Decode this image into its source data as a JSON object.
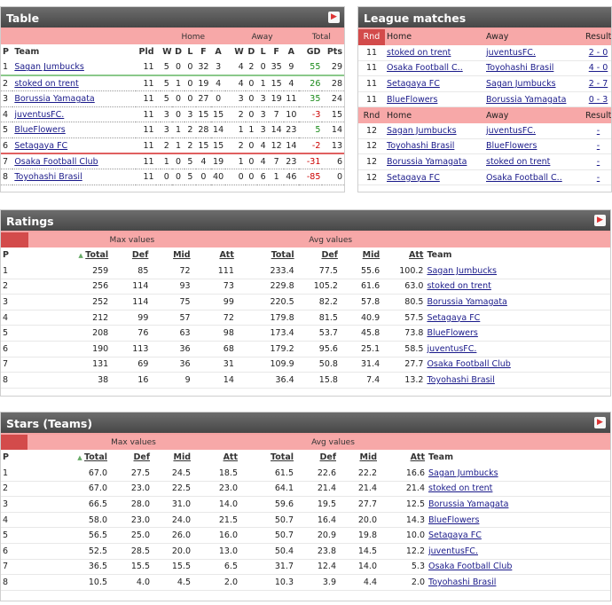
{
  "table": {
    "title": "Table",
    "groups": {
      "home": "Home",
      "away": "Away",
      "total": "Total"
    },
    "headers": {
      "p": "P",
      "team": "Team",
      "pld": "Pld",
      "w": "W",
      "d": "D",
      "l": "L",
      "f": "F",
      "a": "A",
      "w2": "W",
      "d2": "D",
      "l2": "L",
      "f2": "F",
      "a2": "A",
      "gd": "GD",
      "pts": "Pts"
    },
    "rows": [
      [
        "1",
        "Sagan Jumbucks",
        "11",
        "5",
        "0",
        "0",
        "32",
        "3",
        "4",
        "2",
        "0",
        "35",
        "9",
        "55",
        "29"
      ],
      [
        "2",
        "stoked on trent",
        "11",
        "5",
        "1",
        "0",
        "19",
        "4",
        "4",
        "0",
        "1",
        "15",
        "4",
        "26",
        "28"
      ],
      [
        "3",
        "Borussia Yamagata",
        "11",
        "5",
        "0",
        "0",
        "27",
        "0",
        "3",
        "0",
        "3",
        "19",
        "11",
        "35",
        "24"
      ],
      [
        "4",
        "juventusFC.",
        "11",
        "3",
        "0",
        "3",
        "15",
        "15",
        "2",
        "0",
        "3",
        "7",
        "10",
        "-3",
        "15"
      ],
      [
        "5",
        "BlueFlowers",
        "11",
        "3",
        "1",
        "2",
        "28",
        "14",
        "1",
        "1",
        "3",
        "14",
        "23",
        "5",
        "14"
      ],
      [
        "6",
        "Setagaya FC",
        "11",
        "2",
        "1",
        "2",
        "15",
        "15",
        "2",
        "0",
        "4",
        "12",
        "14",
        "-2",
        "13"
      ],
      [
        "7",
        "Osaka Football Club",
        "11",
        "1",
        "0",
        "5",
        "4",
        "19",
        "1",
        "0",
        "4",
        "7",
        "23",
        "-31",
        "6"
      ],
      [
        "8",
        "Toyohashi Brasil",
        "11",
        "0",
        "0",
        "5",
        "0",
        "40",
        "0",
        "0",
        "6",
        "1",
        "46",
        "-85",
        "0"
      ]
    ]
  },
  "league": {
    "title": "League matches",
    "h1": {
      "rnd": "Rnd",
      "home": "Home",
      "away": "Away",
      "result": "Result"
    },
    "rows1": [
      [
        "11",
        "stoked on trent",
        "juventusFC.",
        "2 - 0"
      ],
      [
        "11",
        "Osaka Football C..",
        "Toyohashi Brasil",
        "4 - 0"
      ],
      [
        "11",
        "Setagaya FC",
        "Sagan Jumbucks",
        "2 - 7"
      ],
      [
        "11",
        "BlueFlowers",
        "Borussia Yamagata",
        "0 - 3"
      ]
    ],
    "h2": {
      "rnd": "Rnd",
      "home": "Home",
      "away": "Away",
      "result": "Result"
    },
    "rows2": [
      [
        "12",
        "Sagan Jumbucks",
        "juventusFC.",
        "-"
      ],
      [
        "12",
        "Toyohashi Brasil",
        "BlueFlowers",
        "-"
      ],
      [
        "12",
        "Borussia Yamagata",
        "stoked on trent",
        "-"
      ],
      [
        "12",
        "Setagaya FC",
        "Osaka Football C..",
        "-"
      ]
    ]
  },
  "ratings": {
    "title": "Ratings",
    "g1": "Max values",
    "g2": "Avg values",
    "headers": {
      "p": "P",
      "total": "Total",
      "def": "Def",
      "mid": "Mid",
      "att": "Att",
      "total2": "Total",
      "def2": "Def",
      "mid2": "Mid",
      "att2": "Att",
      "team": "Team"
    },
    "rows": [
      [
        "1",
        "259",
        "85",
        "72",
        "111",
        "233.4",
        "77.5",
        "55.6",
        "100.2",
        "Sagan Jumbucks"
      ],
      [
        "2",
        "256",
        "114",
        "93",
        "73",
        "229.8",
        "105.2",
        "61.6",
        "63.0",
        "stoked on trent"
      ],
      [
        "3",
        "252",
        "114",
        "75",
        "99",
        "220.5",
        "82.2",
        "57.8",
        "80.5",
        "Borussia Yamagata"
      ],
      [
        "4",
        "212",
        "99",
        "57",
        "72",
        "179.8",
        "81.5",
        "40.9",
        "57.5",
        "Setagaya FC"
      ],
      [
        "5",
        "208",
        "76",
        "63",
        "98",
        "173.4",
        "53.7",
        "45.8",
        "73.8",
        "BlueFlowers"
      ],
      [
        "6",
        "190",
        "113",
        "36",
        "68",
        "179.2",
        "95.6",
        "25.1",
        "58.5",
        "juventusFC."
      ],
      [
        "7",
        "131",
        "69",
        "36",
        "31",
        "109.9",
        "50.8",
        "31.4",
        "27.7",
        "Osaka Football Club"
      ],
      [
        "8",
        "38",
        "16",
        "9",
        "14",
        "36.4",
        "15.8",
        "7.4",
        "13.2",
        "Toyohashi Brasil"
      ]
    ]
  },
  "stars": {
    "title": "Stars (Teams)",
    "g1": "Max values",
    "g2": "Avg values",
    "headers": {
      "p": "P",
      "total": "Total",
      "def": "Def",
      "mid": "Mid",
      "att": "Att",
      "total2": "Total",
      "def2": "Def",
      "mid2": "Mid",
      "att2": "Att",
      "team": "Team"
    },
    "rows": [
      [
        "1",
        "67.0",
        "27.5",
        "24.5",
        "18.5",
        "61.5",
        "22.6",
        "22.2",
        "16.6",
        "Sagan Jumbucks"
      ],
      [
        "2",
        "67.0",
        "23.0",
        "22.5",
        "23.0",
        "64.1",
        "21.4",
        "21.4",
        "21.4",
        "stoked on trent"
      ],
      [
        "3",
        "66.5",
        "28.0",
        "31.0",
        "14.0",
        "59.6",
        "19.5",
        "27.7",
        "12.5",
        "Borussia Yamagata"
      ],
      [
        "4",
        "58.0",
        "23.0",
        "24.0",
        "21.5",
        "50.7",
        "16.4",
        "20.0",
        "14.3",
        "BlueFlowers"
      ],
      [
        "5",
        "56.5",
        "25.0",
        "26.0",
        "16.0",
        "50.7",
        "20.9",
        "19.8",
        "10.0",
        "Setagaya FC"
      ],
      [
        "6",
        "52.5",
        "28.5",
        "20.0",
        "13.0",
        "50.4",
        "23.8",
        "14.5",
        "12.2",
        "juventusFC."
      ],
      [
        "7",
        "36.5",
        "15.5",
        "15.5",
        "6.5",
        "31.7",
        "12.4",
        "14.0",
        "5.3",
        "Osaka Football Club"
      ],
      [
        "8",
        "10.5",
        "4.0",
        "4.5",
        "2.0",
        "10.3",
        "3.9",
        "4.4",
        "2.0",
        "Toyohashi Brasil"
      ]
    ]
  },
  "icons": {
    "panel_arrow": "arrow-right-icon",
    "sort": "sort-arrow-icon"
  }
}
